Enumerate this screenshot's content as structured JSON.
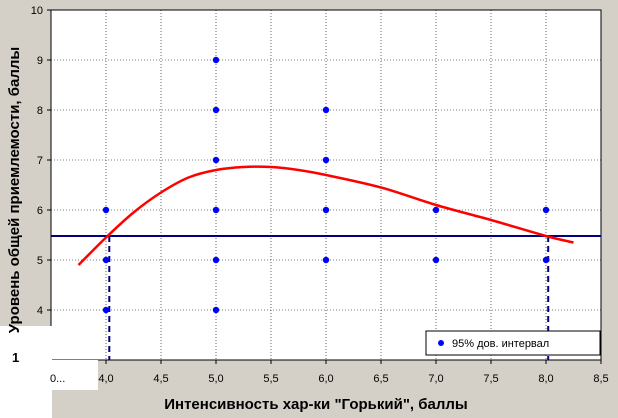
{
  "chart_data": {
    "type": "scatter",
    "xlabel": "Интенсивность хар-ки \"Горький\", баллы",
    "ylabel": "Уровень общей приемлемости, баллы",
    "xlim": [
      3.5,
      8.5
    ],
    "ylim": [
      3,
      10
    ],
    "x_ticks": [
      "4,0",
      "4,5",
      "5,0",
      "5,5",
      "6,0",
      "6,5",
      "7,0",
      "7,5",
      "8,0",
      "8,5"
    ],
    "x_tick_values": [
      4.0,
      4.5,
      5.0,
      5.5,
      6.0,
      6.5,
      7.0,
      7.5,
      8.0,
      8.5
    ],
    "x_tick_first_label": "0...",
    "y_ticks": [
      "4",
      "5",
      "6",
      "7",
      "8",
      "9",
      "10"
    ],
    "y_tick_values": [
      4,
      5,
      6,
      7,
      8,
      9,
      10
    ],
    "y_bottom_label": "1",
    "grid": true,
    "series": [
      {
        "name": "95% дов. интервал",
        "type": "scatter",
        "color": "#0000ff",
        "points": [
          {
            "x": 4.0,
            "y": 6
          },
          {
            "x": 4.0,
            "y": 5
          },
          {
            "x": 4.0,
            "y": 4
          },
          {
            "x": 5.0,
            "y": 9
          },
          {
            "x": 5.0,
            "y": 8
          },
          {
            "x": 5.0,
            "y": 7
          },
          {
            "x": 5.0,
            "y": 6
          },
          {
            "x": 5.0,
            "y": 5
          },
          {
            "x": 5.0,
            "y": 4
          },
          {
            "x": 6.0,
            "y": 8
          },
          {
            "x": 6.0,
            "y": 7
          },
          {
            "x": 6.0,
            "y": 6
          },
          {
            "x": 6.0,
            "y": 5
          },
          {
            "x": 7.0,
            "y": 6
          },
          {
            "x": 7.0,
            "y": 5
          },
          {
            "x": 8.0,
            "y": 6
          },
          {
            "x": 8.0,
            "y": 5
          }
        ]
      },
      {
        "type": "curve",
        "color": "#ff0000",
        "points": [
          {
            "x": 3.75,
            "y": 4.9
          },
          {
            "x": 4.0,
            "y": 5.45
          },
          {
            "x": 4.25,
            "y": 5.95
          },
          {
            "x": 4.5,
            "y": 6.35
          },
          {
            "x": 4.75,
            "y": 6.65
          },
          {
            "x": 5.0,
            "y": 6.8
          },
          {
            "x": 5.25,
            "y": 6.86
          },
          {
            "x": 5.5,
            "y": 6.86
          },
          {
            "x": 5.75,
            "y": 6.8
          },
          {
            "x": 6.0,
            "y": 6.7
          },
          {
            "x": 6.5,
            "y": 6.45
          },
          {
            "x": 7.0,
            "y": 6.1
          },
          {
            "x": 7.5,
            "y": 5.8
          },
          {
            "x": 8.0,
            "y": 5.48
          },
          {
            "x": 8.25,
            "y": 5.35
          }
        ]
      }
    ],
    "reference_line": {
      "y": 5.48,
      "color": "#000080"
    },
    "drop_lines": [
      {
        "x": 4.03
      },
      {
        "x": 8.02
      }
    ],
    "legend": {
      "label": "95% дов. интервал",
      "position": "bottom-right"
    }
  }
}
